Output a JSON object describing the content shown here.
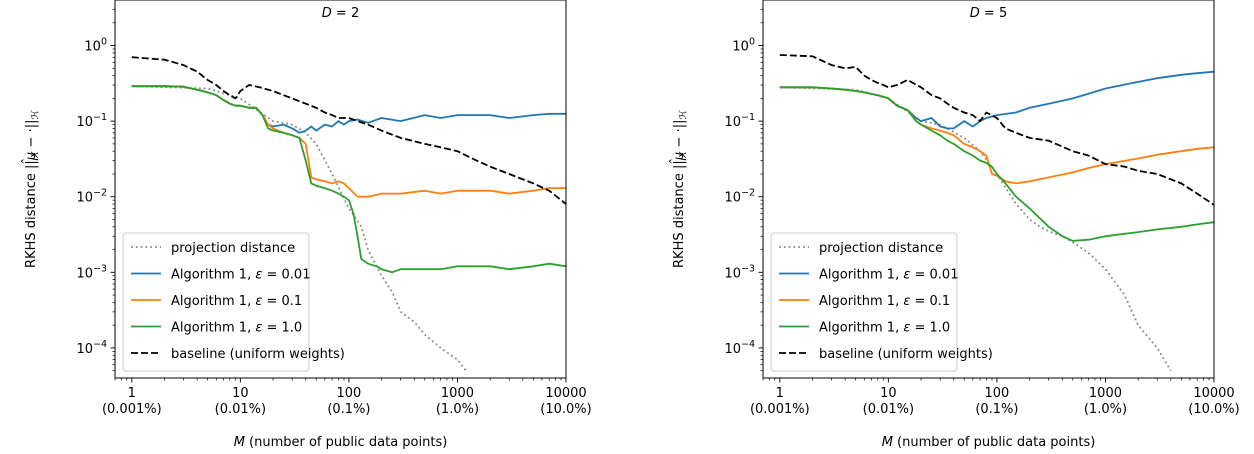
{
  "chart_data": [
    {
      "type": "line",
      "title": "D = 2",
      "title_parts": [
        "D",
        " = 2"
      ],
      "xlabel": "M (number of public data points)",
      "xlabel_parts": [
        "M",
        " (number of public data points)"
      ],
      "ylabel": "RKHS distance ||μ̂_X − ·||_H",
      "ylabel_parts": [
        "RKHS distance ||",
        "μ",
        "̂",
        "X",
        " − ·||",
        "ℋ"
      ],
      "xscale": "log",
      "yscale": "log",
      "xlim": [
        0.7,
        10000
      ],
      "ylim": [
        4e-05,
        4
      ],
      "xticks": [
        {
          "v": 1,
          "l1": "1",
          "l2": "(0.001%)"
        },
        {
          "v": 10,
          "l1": "10",
          "l2": "(0.01%)"
        },
        {
          "v": 100,
          "l1": "100",
          "l2": "(0.1%)"
        },
        {
          "v": 1000,
          "l1": "1000",
          "l2": "(1.0%)"
        },
        {
          "v": 10000,
          "l1": "10000",
          "l2": "(10.0%)"
        }
      ],
      "yticks": [
        {
          "v": 1,
          "exp": "0"
        },
        {
          "v": 0.1,
          "exp": "−1"
        },
        {
          "v": 0.01,
          "exp": "−2"
        },
        {
          "v": 0.001,
          "exp": "−3"
        },
        {
          "v": 0.0001,
          "exp": "−4"
        }
      ],
      "ytick_base": "10",
      "legend_position": "lower-left",
      "series": [
        {
          "name": "projection distance",
          "color": "#888888",
          "style": "dotted",
          "x": [
            1,
            5,
            10,
            20,
            30,
            40,
            50,
            70,
            100,
            130,
            150,
            170,
            200,
            250,
            300,
            400,
            500,
            700,
            1000,
            1200
          ],
          "y": [
            0.29,
            0.27,
            0.2,
            0.1,
            0.09,
            0.07,
            0.05,
            0.02,
            0.007,
            0.004,
            0.002,
            0.0014,
            0.0009,
            0.00055,
            0.0003,
            0.00022,
            0.00015,
            0.0001,
            7e-05,
            5e-05
          ]
        },
        {
          "name": "Algorithm 1, ε = 0.01",
          "label_parts": [
            "Algorithm 1, ",
            "ε",
            " = 0.01"
          ],
          "color": "#1f77b4",
          "style": "solid",
          "x": [
            1,
            2,
            3,
            4,
            5,
            6,
            7,
            8,
            9,
            10,
            12,
            14,
            16,
            18,
            20,
            25,
            30,
            35,
            40,
            45,
            50,
            60,
            70,
            80,
            90,
            100,
            120,
            150,
            200,
            300,
            500,
            700,
            1000,
            2000,
            3000,
            5000,
            7000,
            10000
          ],
          "y": [
            0.29,
            0.29,
            0.285,
            0.26,
            0.24,
            0.22,
            0.19,
            0.17,
            0.16,
            0.16,
            0.15,
            0.15,
            0.12,
            0.09,
            0.085,
            0.09,
            0.08,
            0.07,
            0.075,
            0.085,
            0.075,
            0.09,
            0.085,
            0.1,
            0.09,
            0.1,
            0.105,
            0.095,
            0.11,
            0.1,
            0.12,
            0.11,
            0.12,
            0.12,
            0.11,
            0.12,
            0.125,
            0.125
          ]
        },
        {
          "name": "Algorithm 1, ε = 0.1",
          "label_parts": [
            "Algorithm 1, ",
            "ε",
            " = 0.1"
          ],
          "color": "#ff7f0e",
          "style": "solid",
          "x": [
            1,
            2,
            3,
            4,
            5,
            6,
            7,
            8,
            9,
            10,
            12,
            14,
            16,
            18,
            20,
            25,
            30,
            35,
            40,
            45,
            50,
            60,
            70,
            80,
            90,
            100,
            120,
            150,
            200,
            300,
            500,
            700,
            1000,
            2000,
            3000,
            5000,
            7000,
            10000
          ],
          "y": [
            0.29,
            0.29,
            0.285,
            0.26,
            0.24,
            0.22,
            0.19,
            0.17,
            0.16,
            0.16,
            0.15,
            0.15,
            0.12,
            0.09,
            0.08,
            0.07,
            0.065,
            0.06,
            0.05,
            0.018,
            0.017,
            0.016,
            0.015,
            0.016,
            0.015,
            0.013,
            0.01,
            0.01,
            0.011,
            0.011,
            0.012,
            0.011,
            0.012,
            0.012,
            0.011,
            0.012,
            0.013,
            0.013
          ]
        },
        {
          "name": "Algorithm 1, ε = 1.0",
          "label_parts": [
            "Algorithm 1, ",
            "ε",
            " = 1.0"
          ],
          "color": "#2ca02c",
          "style": "solid",
          "x": [
            1,
            2,
            3,
            4,
            5,
            6,
            7,
            8,
            9,
            10,
            12,
            14,
            16,
            18,
            20,
            25,
            30,
            35,
            40,
            45,
            50,
            60,
            70,
            80,
            90,
            100,
            110,
            120,
            130,
            150,
            180,
            200,
            250,
            300,
            500,
            700,
            1000,
            2000,
            3000,
            5000,
            7000,
            10000
          ],
          "y": [
            0.29,
            0.29,
            0.285,
            0.26,
            0.24,
            0.22,
            0.19,
            0.17,
            0.16,
            0.16,
            0.15,
            0.15,
            0.12,
            0.08,
            0.075,
            0.07,
            0.065,
            0.06,
            0.03,
            0.015,
            0.014,
            0.013,
            0.012,
            0.011,
            0.01,
            0.009,
            0.006,
            0.003,
            0.0015,
            0.0013,
            0.0012,
            0.0011,
            0.001,
            0.0011,
            0.0011,
            0.0011,
            0.0012,
            0.0012,
            0.0011,
            0.0012,
            0.0013,
            0.0012
          ]
        },
        {
          "name": "baseline (uniform weights)",
          "color": "#000000",
          "style": "dashed",
          "x": [
            1,
            2,
            3,
            4,
            5,
            6,
            7,
            8,
            9,
            10,
            12,
            15,
            20,
            25,
            30,
            40,
            50,
            60,
            70,
            80,
            100,
            120,
            150,
            200,
            300,
            500,
            700,
            1000,
            1500,
            2000,
            3000,
            5000,
            7000,
            10000
          ],
          "y": [
            0.7,
            0.65,
            0.55,
            0.45,
            0.35,
            0.3,
            0.25,
            0.22,
            0.2,
            0.25,
            0.3,
            0.28,
            0.25,
            0.22,
            0.2,
            0.17,
            0.15,
            0.13,
            0.12,
            0.11,
            0.11,
            0.1,
            0.09,
            0.075,
            0.06,
            0.05,
            0.045,
            0.04,
            0.03,
            0.025,
            0.02,
            0.015,
            0.012,
            0.008
          ]
        }
      ]
    },
    {
      "type": "line",
      "title": "D = 5",
      "title_parts": [
        "D",
        " = 5"
      ],
      "xlabel": "M (number of public data points)",
      "xlabel_parts": [
        "M",
        " (number of public data points)"
      ],
      "ylabel": "RKHS distance ||μ̂_X − ·||_H",
      "ylabel_parts": [
        "RKHS distance ||",
        "μ",
        "̂",
        "X",
        " − ·||",
        "ℋ"
      ],
      "xscale": "log",
      "yscale": "log",
      "xlim": [
        0.7,
        10000
      ],
      "ylim": [
        4e-05,
        4
      ],
      "xticks": [
        {
          "v": 1,
          "l1": "1",
          "l2": "(0.001%)"
        },
        {
          "v": 10,
          "l1": "10",
          "l2": "(0.01%)"
        },
        {
          "v": 100,
          "l1": "100",
          "l2": "(0.1%)"
        },
        {
          "v": 1000,
          "l1": "1000",
          "l2": "(1.0%)"
        },
        {
          "v": 10000,
          "l1": "10000",
          "l2": "(10.0%)"
        }
      ],
      "yticks": [
        {
          "v": 1,
          "exp": "0"
        },
        {
          "v": 0.1,
          "exp": "−1"
        },
        {
          "v": 0.01,
          "exp": "−2"
        },
        {
          "v": 0.001,
          "exp": "−3"
        },
        {
          "v": 0.0001,
          "exp": "−4"
        }
      ],
      "ytick_base": "10",
      "legend_position": "lower-left",
      "series": [
        {
          "name": "projection distance",
          "color": "#888888",
          "style": "dotted",
          "x": [
            1,
            5,
            10,
            20,
            30,
            50,
            70,
            100,
            150,
            200,
            250,
            300,
            400,
            500,
            700,
            1000,
            1500,
            2000,
            3000,
            4000
          ],
          "y": [
            0.28,
            0.26,
            0.2,
            0.1,
            0.09,
            0.06,
            0.04,
            0.02,
            0.008,
            0.005,
            0.004,
            0.0035,
            0.003,
            0.0025,
            0.0018,
            0.0011,
            0.0005,
            0.0002,
            0.0001,
            5e-05
          ]
        },
        {
          "name": "Algorithm 1, ε = 0.01",
          "label_parts": [
            "Algorithm 1, ",
            "ε",
            " = 0.01"
          ],
          "color": "#1f77b4",
          "style": "solid",
          "x": [
            1,
            2,
            3,
            4,
            5,
            6,
            8,
            10,
            12,
            15,
            18,
            20,
            25,
            30,
            35,
            40,
            50,
            60,
            70,
            80,
            100,
            150,
            200,
            300,
            500,
            700,
            1000,
            2000,
            3000,
            5000,
            7000,
            10000
          ],
          "y": [
            0.28,
            0.28,
            0.27,
            0.26,
            0.25,
            0.24,
            0.22,
            0.2,
            0.16,
            0.14,
            0.11,
            0.1,
            0.11,
            0.085,
            0.08,
            0.08,
            0.1,
            0.085,
            0.1,
            0.11,
            0.12,
            0.13,
            0.15,
            0.17,
            0.2,
            0.23,
            0.27,
            0.33,
            0.37,
            0.41,
            0.43,
            0.45
          ]
        },
        {
          "name": "Algorithm 1, ε = 0.1",
          "label_parts": [
            "Algorithm 1, ",
            "ε",
            " = 0.1"
          ],
          "color": "#ff7f0e",
          "style": "solid",
          "x": [
            1,
            2,
            3,
            4,
            5,
            6,
            8,
            10,
            12,
            15,
            18,
            20,
            25,
            30,
            35,
            40,
            50,
            60,
            70,
            80,
            90,
            100,
            120,
            150,
            200,
            300,
            500,
            700,
            1000,
            2000,
            3000,
            5000,
            7000,
            10000
          ],
          "y": [
            0.28,
            0.28,
            0.27,
            0.26,
            0.25,
            0.24,
            0.22,
            0.2,
            0.16,
            0.14,
            0.1,
            0.09,
            0.08,
            0.075,
            0.07,
            0.065,
            0.05,
            0.045,
            0.04,
            0.035,
            0.02,
            0.019,
            0.016,
            0.015,
            0.016,
            0.018,
            0.021,
            0.024,
            0.027,
            0.032,
            0.036,
            0.04,
            0.043,
            0.045
          ]
        },
        {
          "name": "Algorithm 1, ε = 1.0",
          "label_parts": [
            "Algorithm 1, ",
            "ε",
            " = 1.0"
          ],
          "color": "#2ca02c",
          "style": "solid",
          "x": [
            1,
            2,
            3,
            4,
            5,
            6,
            8,
            10,
            12,
            15,
            18,
            20,
            25,
            30,
            35,
            40,
            50,
            60,
            70,
            80,
            90,
            100,
            120,
            150,
            200,
            300,
            400,
            500,
            700,
            1000,
            2000,
            3000,
            5000,
            7000,
            10000
          ],
          "y": [
            0.28,
            0.28,
            0.27,
            0.26,
            0.25,
            0.24,
            0.22,
            0.2,
            0.16,
            0.14,
            0.1,
            0.09,
            0.075,
            0.065,
            0.055,
            0.05,
            0.04,
            0.035,
            0.03,
            0.028,
            0.025,
            0.02,
            0.015,
            0.01,
            0.007,
            0.004,
            0.003,
            0.0026,
            0.0027,
            0.003,
            0.0034,
            0.0037,
            0.004,
            0.0043,
            0.0046
          ]
        },
        {
          "name": "baseline (uniform weights)",
          "color": "#000000",
          "style": "dashed",
          "x": [
            1,
            2,
            3,
            4,
            5,
            6,
            7,
            8,
            9,
            10,
            12,
            15,
            20,
            25,
            30,
            35,
            40,
            50,
            60,
            70,
            80,
            100,
            120,
            150,
            200,
            300,
            500,
            700,
            1000,
            1500,
            2000,
            3000,
            5000,
            7000,
            10000
          ],
          "y": [
            0.75,
            0.72,
            0.55,
            0.5,
            0.52,
            0.4,
            0.35,
            0.32,
            0.3,
            0.28,
            0.3,
            0.35,
            0.28,
            0.22,
            0.2,
            0.17,
            0.15,
            0.13,
            0.12,
            0.1,
            0.13,
            0.11,
            0.08,
            0.07,
            0.06,
            0.055,
            0.04,
            0.035,
            0.027,
            0.025,
            0.022,
            0.02,
            0.015,
            0.011,
            0.0078
          ]
        }
      ]
    }
  ]
}
